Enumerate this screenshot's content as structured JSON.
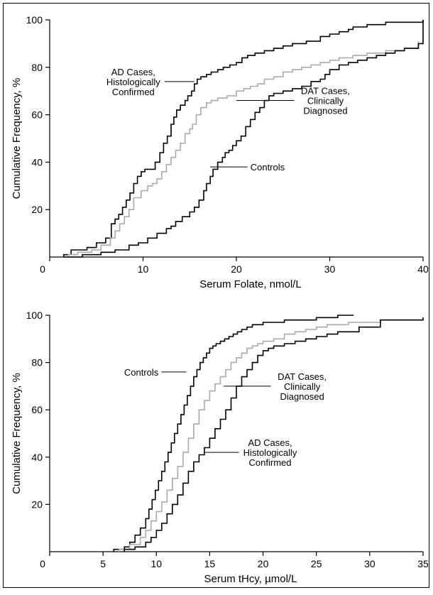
{
  "chart_data": [
    {
      "type": "line",
      "step": true,
      "xlabel": "Serum Folate, nmol/L",
      "ylabel": "Cumulative Frequency, %",
      "xlim": [
        0,
        40
      ],
      "ylim": [
        0,
        100
      ],
      "xticks": [
        0,
        10,
        20,
        30,
        40
      ],
      "yticks": [
        20,
        40,
        60,
        80,
        100
      ],
      "grid": false,
      "annotations": [
        {
          "text": "AD Cases,\nHistologically\nConfirmed",
          "x": 12.0,
          "y": 74,
          "point_x": 15.5,
          "point_y": 74,
          "anchor": "end"
        },
        {
          "text": "DAT Cases,\nClinically\nDiagnosed",
          "x": 26.5,
          "y": 66,
          "point_x": 20.0,
          "point_y": 66,
          "anchor": "start"
        },
        {
          "text": "Controls",
          "x": 21.5,
          "y": 38,
          "point_x": 17.2,
          "point_y": 38,
          "anchor": "start"
        }
      ],
      "series": [
        {
          "name": "AD Cases, Histologically Confirmed",
          "color": "#000000",
          "width": 1.6,
          "x": [
            1.5,
            2.3,
            4.0,
            5.0,
            6.0,
            6.6,
            7.0,
            7.4,
            7.8,
            8.2,
            8.6,
            9.0,
            9.4,
            9.8,
            10.2,
            11.3,
            11.8,
            12.2,
            12.6,
            13.0,
            13.3,
            13.6,
            14.0,
            14.5,
            14.8,
            15.2,
            15.5,
            15.8,
            16.2,
            16.8,
            17.3,
            18.0,
            18.6,
            19.3,
            20.0,
            20.6,
            21.2,
            22.0,
            23.0,
            24.0,
            25.0,
            26.0,
            27.5,
            29.0,
            30.0,
            31.0,
            32.0,
            32.5,
            34.0,
            36.0,
            38.0,
            40.0
          ],
          "y": [
            1,
            3,
            4,
            6,
            8,
            14,
            16,
            18,
            21,
            24,
            27,
            31,
            34,
            36,
            37,
            40,
            44,
            48,
            51,
            56,
            59,
            62,
            64,
            66,
            68,
            70,
            73,
            75,
            76,
            77,
            78,
            79,
            80,
            81,
            82,
            84,
            85,
            86,
            87,
            88,
            89,
            90,
            91,
            93,
            94,
            95,
            96,
            97,
            98,
            99,
            99,
            100
          ]
        },
        {
          "name": "DAT Cases, Clinically Diagnosed",
          "color": "#aaaaaa",
          "width": 1.6,
          "x": [
            2.0,
            3.0,
            4.5,
            5.5,
            6.5,
            7.0,
            7.5,
            8.0,
            8.5,
            9.0,
            9.8,
            10.5,
            11.0,
            11.5,
            12.0,
            12.5,
            13.0,
            13.5,
            14.0,
            14.5,
            15.0,
            15.3,
            15.7,
            16.2,
            16.8,
            17.3,
            18.0,
            19.0,
            20.0,
            20.8,
            21.5,
            22.3,
            23.0,
            24.0,
            25.0,
            26.0,
            27.0,
            28.0,
            29.0,
            30.0,
            31.0,
            32.5,
            34.0,
            36.0,
            38.0,
            39.5
          ],
          "y": [
            1,
            2,
            3,
            5,
            8,
            11,
            14,
            17,
            20,
            25,
            28,
            30,
            31,
            33,
            36,
            39,
            42,
            45,
            48,
            52,
            54,
            56,
            60,
            63,
            65,
            66,
            67,
            68,
            70,
            71,
            72,
            73,
            75,
            76,
            78,
            79,
            80,
            81,
            82,
            83,
            84,
            85,
            86,
            87,
            88,
            91
          ]
        },
        {
          "name": "Controls",
          "color": "#000000",
          "width": 1.6,
          "x": [
            1.5,
            3.5,
            5.5,
            7.0,
            8.5,
            9.5,
            10.5,
            11.5,
            12.5,
            13.0,
            13.5,
            14.2,
            15.0,
            15.5,
            16.0,
            16.5,
            16.8,
            17.2,
            17.5,
            18.0,
            18.5,
            18.8,
            19.2,
            19.6,
            20.0,
            20.5,
            21.0,
            21.5,
            22.0,
            22.5,
            23.0,
            23.5,
            24.0,
            25.0,
            26.0,
            27.0,
            28.0,
            29.0,
            29.5,
            30.0,
            31.0,
            32.0,
            33.0,
            34.0,
            35.0,
            36.0,
            37.0,
            38.0,
            39.5,
            40.0
          ],
          "y": [
            0,
            1,
            2,
            3,
            5,
            6,
            8,
            10,
            12,
            13,
            15,
            17,
            19,
            21,
            24,
            28,
            31,
            34,
            37,
            40,
            42,
            44,
            45,
            47,
            49,
            51,
            55,
            58,
            61,
            63,
            66,
            68,
            69,
            70,
            71,
            72,
            74,
            75,
            77,
            79,
            81,
            82,
            83,
            84,
            85,
            86,
            87,
            88,
            90,
            100
          ]
        }
      ]
    },
    {
      "type": "line",
      "step": true,
      "xlabel": "Serum tHcy, µmol/L",
      "ylabel": "Cumulative Frequency, %",
      "xlim": [
        0,
        35
      ],
      "ylim": [
        0,
        100
      ],
      "xticks": [
        0,
        5,
        10,
        15,
        20,
        25,
        30,
        35
      ],
      "yticks": [
        20,
        40,
        60,
        80,
        100
      ],
      "grid": false,
      "annotations": [
        {
          "text": "Controls",
          "x": 10.2,
          "y": 76,
          "point_x": 12.8,
          "point_y": 76,
          "anchor": "end"
        },
        {
          "text": "DAT Cases,\nClinically\nDiagnosed",
          "x": 21.0,
          "y": 70,
          "point_x": 16.3,
          "point_y": 70,
          "anchor": "start"
        },
        {
          "text": "AD Cases,\nHistologically\nConfirmed",
          "x": 18.0,
          "y": 42,
          "point_x": 14.5,
          "point_y": 42,
          "anchor": "start"
        }
      ],
      "series": [
        {
          "name": "Controls",
          "color": "#000000",
          "width": 1.6,
          "x": [
            6.0,
            7.0,
            7.5,
            8.0,
            8.5,
            9.0,
            9.3,
            9.6,
            9.9,
            10.2,
            10.5,
            10.8,
            11.1,
            11.4,
            11.7,
            12.0,
            12.3,
            12.6,
            12.9,
            13.2,
            13.5,
            13.8,
            14.1,
            14.4,
            14.7,
            15.0,
            15.3,
            15.6,
            16.0,
            16.4,
            16.8,
            17.2,
            17.6,
            18.0,
            18.5,
            19.0,
            19.5,
            20.0,
            21.0,
            22.0,
            23.0,
            25.0,
            27.0,
            28.5
          ],
          "y": [
            1,
            2,
            4,
            7,
            10,
            14,
            18,
            22,
            26,
            30,
            34,
            38,
            42,
            46,
            50,
            54,
            58,
            62,
            66,
            70,
            74,
            77,
            80,
            82,
            84,
            86,
            87,
            88,
            89,
            90,
            91,
            92,
            93,
            94,
            95,
            96,
            96,
            97,
            97,
            98,
            98,
            99,
            100,
            100
          ]
        },
        {
          "name": "DAT Cases, Clinically Diagnosed",
          "color": "#aaaaaa",
          "width": 1.6,
          "x": [
            6.5,
            7.5,
            8.5,
            9.0,
            9.5,
            10.0,
            10.5,
            11.0,
            11.5,
            12.0,
            12.5,
            13.0,
            13.5,
            14.0,
            14.5,
            15.0,
            15.5,
            16.0,
            16.5,
            17.0,
            17.5,
            18.0,
            18.5,
            19.0,
            19.5,
            20.0,
            21.0,
            22.0,
            23.0,
            24.0,
            25.0,
            26.0,
            28.0,
            31.0,
            35.0
          ],
          "y": [
            1,
            3,
            6,
            9,
            13,
            17,
            21,
            26,
            31,
            36,
            42,
            48,
            54,
            60,
            64,
            68,
            71,
            74,
            77,
            80,
            82,
            84,
            86,
            87,
            88,
            89,
            90,
            92,
            93,
            94,
            95,
            96,
            97,
            98,
            99
          ]
        },
        {
          "name": "AD Cases, Histologically Confirmed",
          "color": "#000000",
          "width": 1.6,
          "x": [
            7.0,
            8.0,
            9.0,
            9.5,
            10.0,
            10.5,
            11.0,
            11.5,
            12.0,
            12.5,
            13.0,
            13.5,
            14.0,
            14.5,
            15.0,
            15.5,
            16.0,
            16.5,
            17.0,
            17.5,
            18.0,
            18.5,
            19.0,
            19.5,
            20.0,
            20.5,
            21.0,
            22.0,
            23.0,
            24.0,
            25.0,
            26.0,
            27.0,
            29.0,
            31.0,
            35.0
          ],
          "y": [
            1,
            2,
            4,
            6,
            9,
            12,
            16,
            20,
            24,
            29,
            34,
            38,
            41,
            44,
            48,
            52,
            56,
            60,
            65,
            70,
            74,
            77,
            80,
            83,
            85,
            86,
            87,
            88,
            89,
            90,
            91,
            92,
            93,
            95,
            98,
            99
          ]
        }
      ]
    }
  ]
}
